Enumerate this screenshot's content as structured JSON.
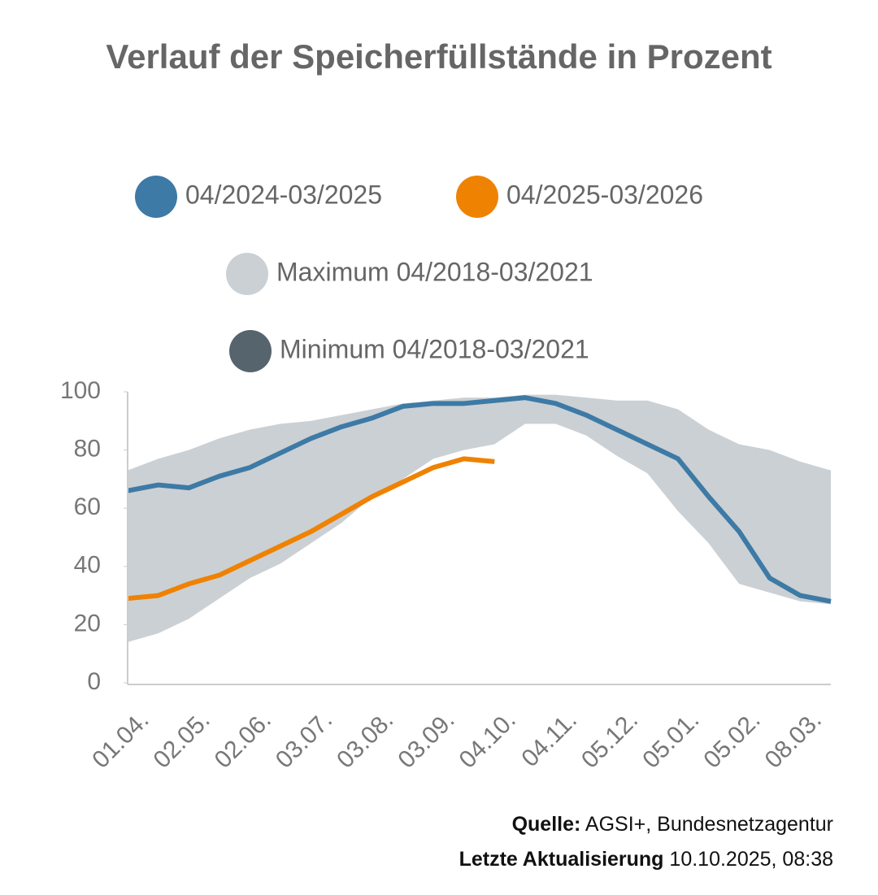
{
  "chart_data": {
    "type": "line",
    "title": "Verlauf der Speicherfüllstände in Prozent",
    "categories": [
      "01.04.",
      null,
      "02.05.",
      null,
      "02.06.",
      null,
      "03.07.",
      null,
      "03.08.",
      null,
      "03.09.",
      null,
      "04.10.",
      null,
      "04.11.",
      null,
      "05.12.",
      null,
      "05.01.",
      null,
      "05.02.",
      null,
      "08.03.",
      null
    ],
    "series": [
      {
        "name": "04/2024-03/2025",
        "color": "#3d7aa6",
        "values": [
          66,
          68,
          67,
          71,
          74,
          79,
          84,
          88,
          91,
          95,
          96,
          96,
          97,
          98,
          96,
          92,
          87,
          82,
          77,
          64,
          52,
          36,
          30,
          28
        ]
      },
      {
        "name": "04/2025-03/2026",
        "color": "#ef8200",
        "values": [
          29,
          30,
          34,
          37,
          42,
          47,
          52,
          58,
          64,
          69,
          74,
          77,
          76,
          null,
          null,
          null,
          null,
          null,
          null,
          null,
          null,
          null,
          null,
          null
        ]
      },
      {
        "name": "Maximum 04/2018-03/2021",
        "color": "#cbd0d4",
        "values": [
          73,
          77,
          80,
          84,
          87,
          89,
          90,
          92,
          94,
          96,
          97,
          98,
          98,
          99,
          99,
          98,
          97,
          97,
          94,
          87,
          82,
          80,
          76,
          73
        ]
      },
      {
        "name": "Minimum 04/2018-03/2021",
        "color": "#56646e",
        "values": [
          14,
          17,
          22,
          29,
          36,
          41,
          48,
          55,
          64,
          70,
          77,
          80,
          82,
          89,
          89,
          85,
          78,
          72,
          59,
          48,
          34,
          31,
          28,
          27
        ]
      }
    ],
    "ylim": [
      0,
      100
    ],
    "yticks": [
      0,
      20,
      40,
      60,
      80,
      100
    ],
    "source_label": "Quelle:",
    "source": "AGSI+, Bundesnetzagentur",
    "updated_label": "Letzte Aktualisierung",
    "updated": "10.10.2025, 08:38"
  }
}
